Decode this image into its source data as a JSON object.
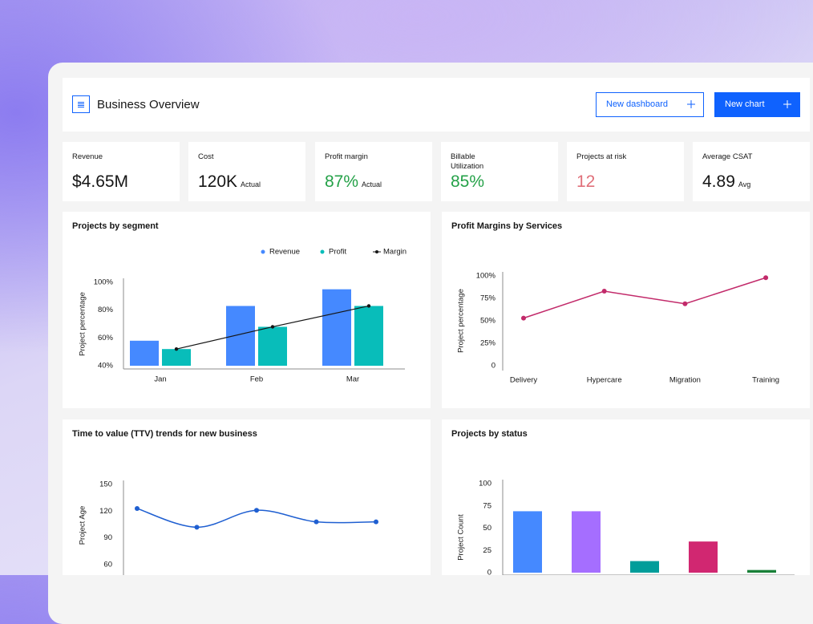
{
  "header": {
    "title": "Business Overview",
    "buttons": [
      "New dashboard",
      "New chart"
    ]
  },
  "kpis": [
    {
      "label": "Revenue",
      "value": "$4.65M",
      "color": "#161616"
    },
    {
      "label": "Cost",
      "value": "120K",
      "note": "Actual",
      "color": "#161616"
    },
    {
      "label": "Profit margin",
      "value": "87%",
      "note": "Actual",
      "color": "#24a148"
    },
    {
      "label": "Billable Utilization",
      "value": "85%",
      "color": "#24a148"
    },
    {
      "label": "Projects at risk",
      "value": "12",
      "color": "#e0707a"
    },
    {
      "label": "Average CSAT",
      "value": "4.89",
      "note": "Avg",
      "color": "#161616"
    }
  ],
  "chart_data": [
    {
      "type": "bar",
      "title": "Projects by segment",
      "y_label": "Project percentage",
      "categories": [
        "Jan",
        "Feb",
        "Mar"
      ],
      "series": [
        {
          "name": "Revenue",
          "color": "#4589ff",
          "values": [
            58,
            83,
            95
          ]
        },
        {
          "name": "Profit",
          "color": "#08bdba",
          "values": [
            52,
            68,
            83
          ]
        },
        {
          "name": "Margin",
          "color": "#161616",
          "type": "line",
          "values": [
            52,
            68,
            83
          ]
        }
      ],
      "ylim": [
        40,
        100
      ],
      "yticks": [
        {
          "value": 40,
          "label": "40%"
        },
        {
          "value": 60,
          "label": "60%"
        },
        {
          "value": 80,
          "label": "80%"
        },
        {
          "value": 100,
          "label": "100%"
        }
      ]
    },
    {
      "type": "line",
      "title": "Profit Margins by Services",
      "y_label": "Project percentage",
      "categories": [
        "Delivery",
        "Hypercare",
        "Migration",
        "Training"
      ],
      "values": [
        53,
        83,
        69,
        98
      ],
      "color": "#c22a6a",
      "ylim": [
        0,
        100
      ],
      "yticks": [
        0,
        {
          "value": 25,
          "label": "25%"
        },
        {
          "value": 50,
          "label": "50%"
        },
        {
          "value": 75,
          "label": "75%"
        },
        {
          "value": 100,
          "label": "100%"
        }
      ]
    },
    {
      "type": "line",
      "title": "Time to value (TTV) trends for new business",
      "y_label": "Project Age",
      "values": [
        123,
        102,
        121,
        108,
        108
      ],
      "color": "#1f5fd1",
      "smooth": true,
      "ylim": [
        60,
        150
      ],
      "yticks": [
        60,
        90,
        120,
        150
      ]
    },
    {
      "type": "bar",
      "title": "Projects by status",
      "y_label": "Project Count",
      "values": [
        69,
        69,
        13,
        35,
        3
      ],
      "colors": [
        "#4589ff",
        "#a56eff",
        "#009d9a",
        "#d12771",
        "#198038"
      ],
      "ylim": [
        0,
        100
      ],
      "yticks": [
        0,
        25,
        50,
        75,
        100
      ]
    }
  ]
}
